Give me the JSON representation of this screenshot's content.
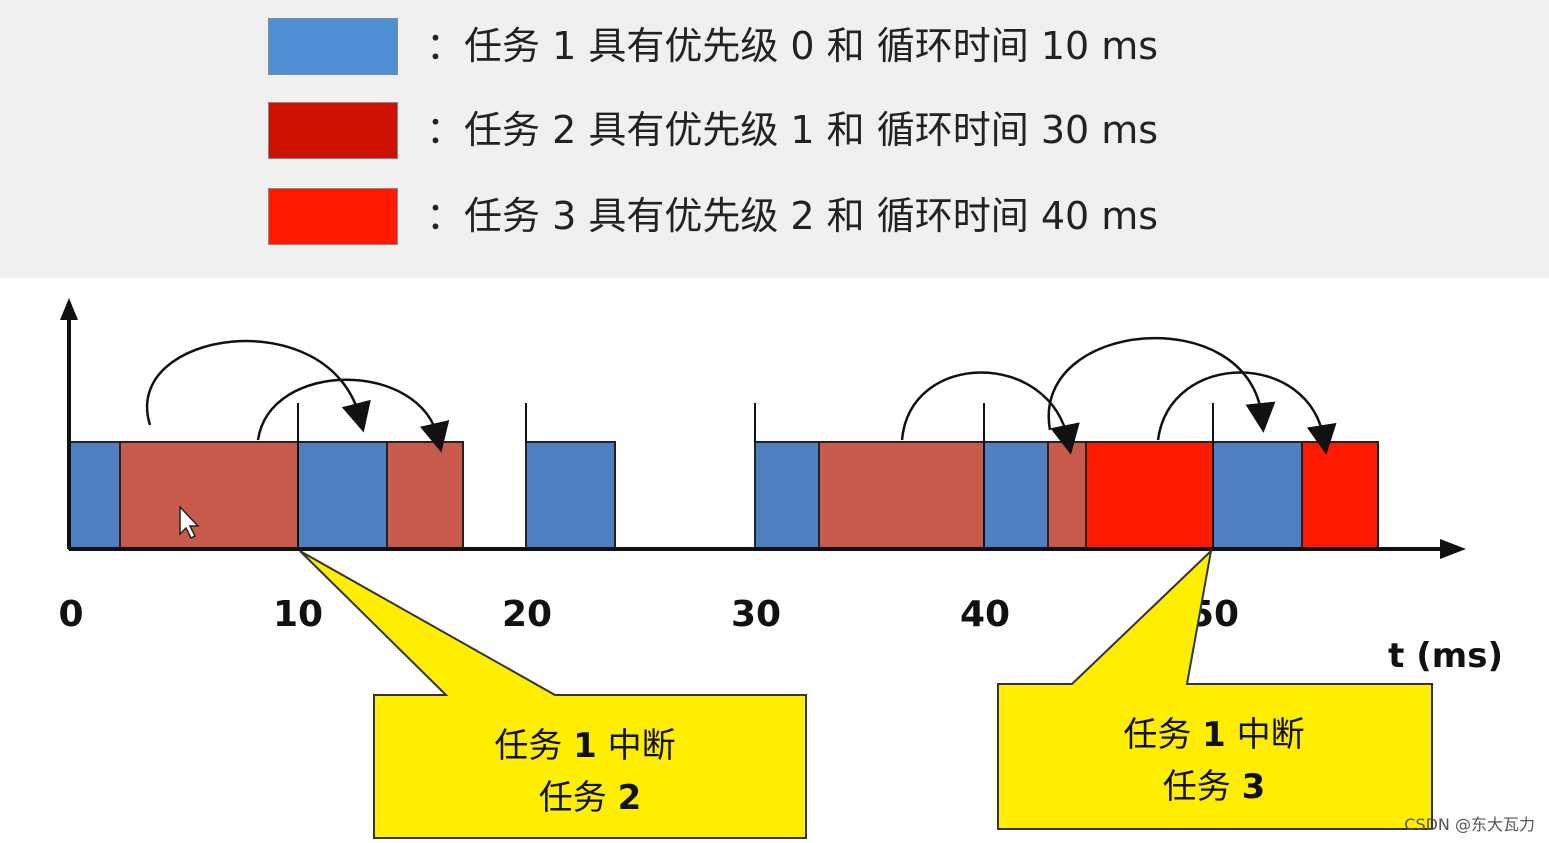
{
  "legend": [
    {
      "color": "#4f8fd6",
      "label": "任务 1 具有优先级 0 和 循环时间 10 ms"
    },
    {
      "color": "#cc1100",
      "label": "任务 2 具有优先级 1 和 循环时间 30 ms"
    },
    {
      "color": "#ff1a00",
      "label": "任务 3 具有优先级 2 和 循环时间 40 ms"
    }
  ],
  "legend_colon": "：",
  "timeline": {
    "ticks": [
      "0",
      "10",
      "20",
      "30",
      "40",
      "50"
    ],
    "axis_label": "t (ms)",
    "colors": {
      "task1": "#4f7fc1",
      "task2": "#c75a4a",
      "task3": "#ff1a00"
    }
  },
  "callouts": [
    {
      "line1_prefix": "任务",
      "line1_num": "1",
      "line1_suffix": "中断",
      "line2_prefix": "任务",
      "line2_num": "2"
    },
    {
      "line1_prefix": "任务",
      "line1_num": "1",
      "line1_suffix": "中断",
      "line2_prefix": "任务",
      "line2_num": "3"
    }
  ],
  "watermark": "CSDN @东大瓦力"
}
